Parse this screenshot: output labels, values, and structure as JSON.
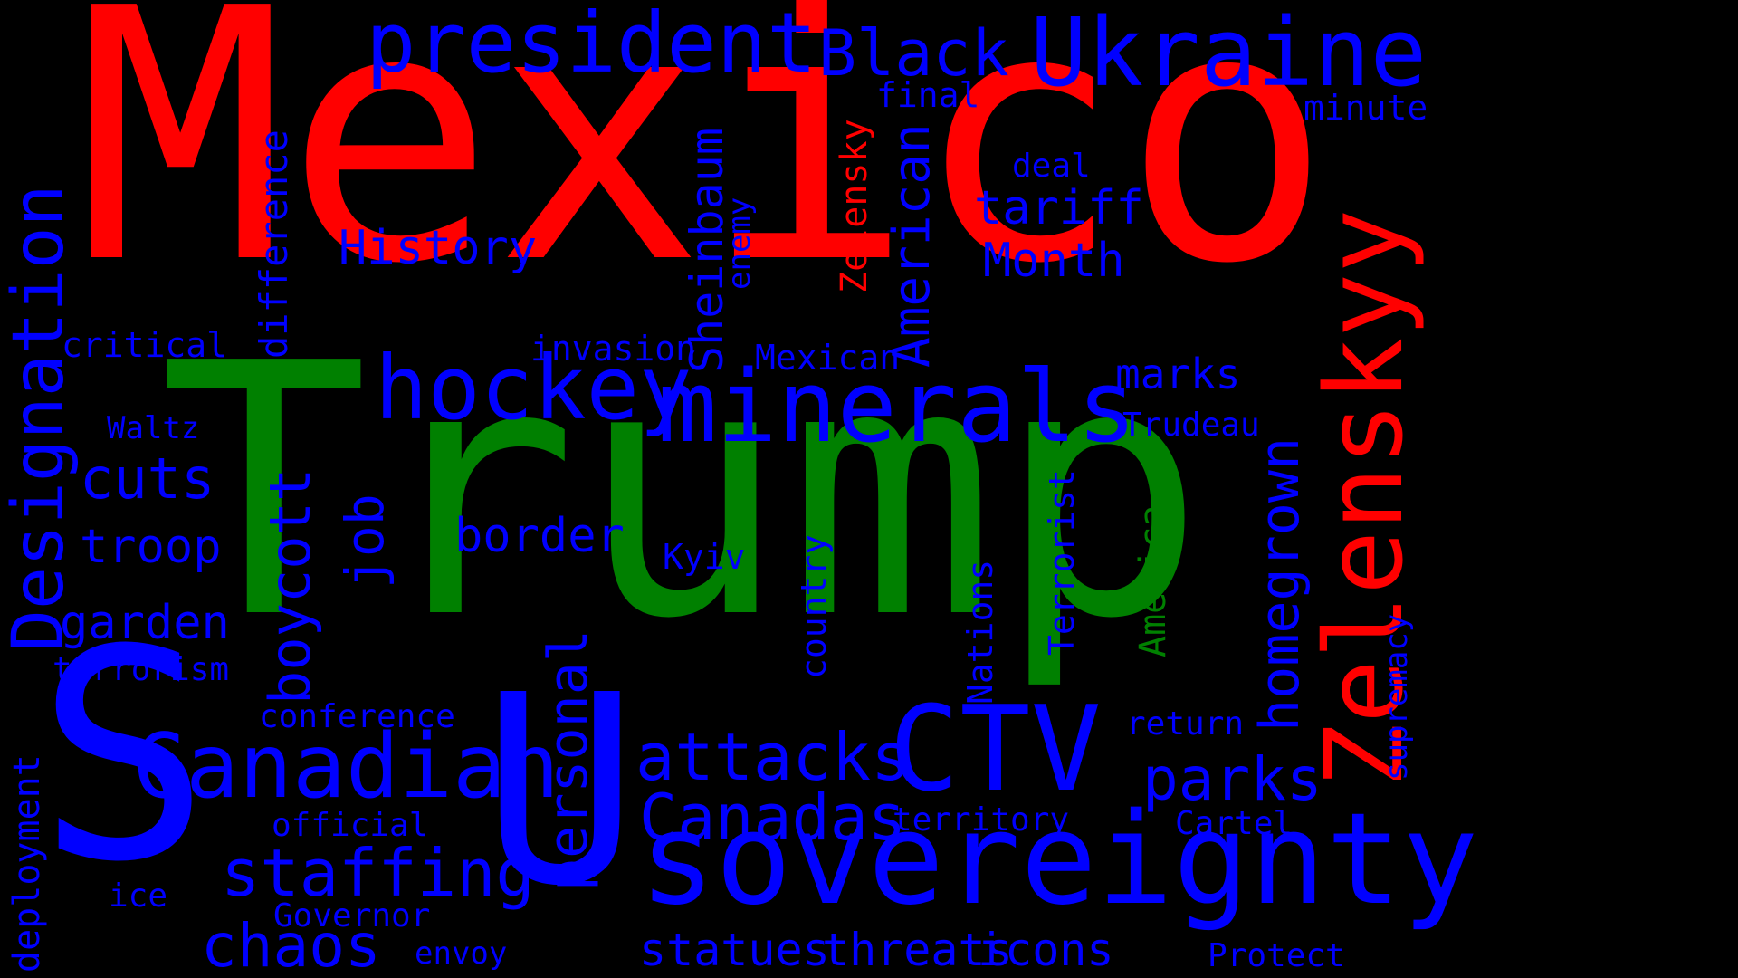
{
  "colors": {
    "background": "#000000",
    "red": "#ff0000",
    "green": "#008000",
    "blue": "#0000ff"
  },
  "words": {
    "mexico": "Mexico",
    "trump": "Trump",
    "s": "S",
    "u": "U",
    "zelenskyy": "Zelenskyy",
    "designation": "Designation",
    "president": "president",
    "black": "Black",
    "ukraine": "Ukraine",
    "minerals": "minerals",
    "hockey": "hockey",
    "sovereignty": "sovereignty",
    "canadian": "Canadian",
    "ctv": "CTV",
    "attacks": "attacks",
    "canadas": "Canadas",
    "staffing": "staffing",
    "chaos": "chaos",
    "cuts": "cuts",
    "troop": "troop",
    "garden": "garden",
    "terrorism": "terrorism",
    "critical": "critical",
    "waltz": "Waltz",
    "history": "History",
    "difference": "difference",
    "boycott": "boycott",
    "job": "job",
    "border": "border",
    "personal": "personal",
    "invasion": "invasion",
    "sheinbaum": "Sheinbaum",
    "enemy": "enemy",
    "mexican": "Mexican",
    "american": "American",
    "zelensky": "Zelensky",
    "final": "final",
    "deal": "deal",
    "tariff": "tariff",
    "month": "Month",
    "minute": "minute",
    "marks": "marks",
    "trudeau": "Trudeau",
    "homegrown": "homegrown",
    "kyiv": "Kyiv",
    "country": "country",
    "nations": "Nations",
    "terrorist": "Terrorist",
    "america": "America",
    "parks": "parks",
    "return": "return",
    "supremacy": "supremacy",
    "cartel": "Cartel",
    "territory": "territory",
    "protect": "Protect",
    "conference": "conference",
    "official": "official",
    "governor": "Governor",
    "ice": "ice",
    "envoy": "envoy",
    "deployment": "deployment",
    "statues": "statues",
    "threats": "threats",
    "icons": "icons"
  }
}
